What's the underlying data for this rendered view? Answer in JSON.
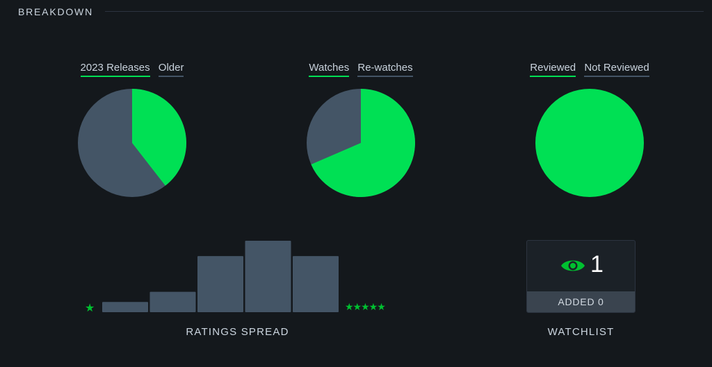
{
  "section": {
    "title": "BREAKDOWN"
  },
  "colors": {
    "accent": "#00e054",
    "slate": "#445566",
    "background": "#14181c"
  },
  "pies": [
    {
      "primary_label": "2023 Releases",
      "secondary_label": "Older",
      "primary_fraction": 0.395
    },
    {
      "primary_label": "Watches",
      "secondary_label": "Re-watches",
      "primary_fraction": 0.685
    },
    {
      "primary_label": "Reviewed",
      "secondary_label": "Not Reviewed",
      "primary_fraction": 1.0
    }
  ],
  "ratings": {
    "label": "RATINGS SPREAD",
    "low_star": "★",
    "high_stars": "★★★★★"
  },
  "watchlist": {
    "icon": "eye-icon",
    "count": "1",
    "added_label": "ADDED 0",
    "label": "WATCHLIST"
  },
  "chart_data": {
    "type": "bar",
    "categories": [
      "1",
      "2",
      "3",
      "4",
      "5"
    ],
    "values": [
      2,
      4,
      11,
      14,
      11
    ],
    "title": "RATINGS SPREAD",
    "xlabel": "",
    "ylabel": "",
    "grid": false
  }
}
